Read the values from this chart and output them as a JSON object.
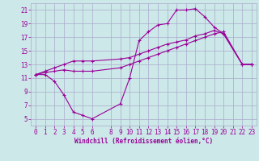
{
  "background_color": "#cce8e8",
  "grid_color": "#aaaacc",
  "line_color": "#990099",
  "xlabel": "Windchill (Refroidissement éolien,°C)",
  "xlabel_color": "#990099",
  "tick_color": "#990099",
  "xlim": [
    -0.5,
    23.5
  ],
  "ylim": [
    4,
    22
  ],
  "xticks": [
    0,
    1,
    2,
    3,
    4,
    5,
    6,
    8,
    9,
    10,
    11,
    12,
    13,
    14,
    15,
    16,
    17,
    18,
    19,
    20,
    21,
    22,
    23
  ],
  "yticks": [
    5,
    7,
    9,
    11,
    13,
    15,
    17,
    19,
    21
  ],
  "series": [
    {
      "x": [
        0,
        1,
        2,
        3,
        4,
        5,
        6,
        9,
        10,
        11,
        12,
        13,
        14,
        15,
        16,
        17,
        18,
        19,
        20,
        22,
        23
      ],
      "y": [
        11.5,
        11.5,
        10.5,
        8.5,
        6.0,
        5.5,
        5.0,
        7.2,
        11.0,
        16.5,
        17.8,
        18.8,
        19.0,
        21.0,
        21.0,
        21.2,
        20.0,
        18.5,
        17.5,
        13.0,
        13.0
      ]
    },
    {
      "x": [
        0,
        1,
        2,
        3,
        4,
        5,
        6,
        9,
        10,
        11,
        12,
        13,
        14,
        15,
        16,
        17,
        18,
        19,
        20,
        22,
        23
      ],
      "y": [
        11.5,
        12.0,
        12.5,
        13.0,
        13.5,
        13.5,
        13.5,
        13.8,
        14.0,
        14.5,
        15.0,
        15.5,
        16.0,
        16.3,
        16.6,
        17.2,
        17.5,
        18.0,
        17.5,
        13.0,
        13.0
      ]
    },
    {
      "x": [
        0,
        1,
        2,
        3,
        4,
        5,
        6,
        9,
        10,
        11,
        12,
        13,
        14,
        15,
        16,
        17,
        18,
        19,
        20,
        22,
        23
      ],
      "y": [
        11.5,
        11.8,
        12.0,
        12.2,
        12.0,
        12.0,
        12.0,
        12.5,
        13.0,
        13.5,
        14.0,
        14.5,
        15.0,
        15.5,
        16.0,
        16.5,
        17.0,
        17.5,
        17.8,
        13.0,
        13.0
      ]
    }
  ]
}
